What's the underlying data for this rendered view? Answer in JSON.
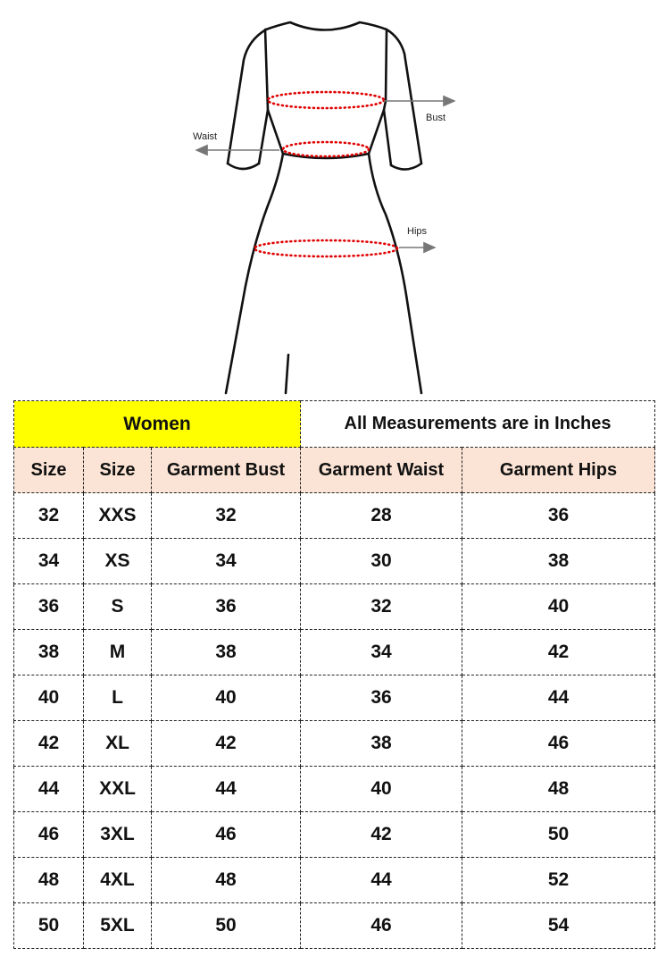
{
  "figure": {
    "labels": {
      "bust": "Bust",
      "waist": "Waist",
      "hips": "Hips"
    },
    "colors": {
      "outline": "#111111",
      "measure_dots": "#e00000",
      "arrow": "#777777"
    }
  },
  "table": {
    "group_label": "Women",
    "note": "All Measurements are in Inches",
    "colors": {
      "group_bg": "#ffff00",
      "header_bg": "#fbe4d5"
    },
    "headers": [
      "Size",
      "Size",
      "Garment Bust",
      "Garment Waist",
      "Garment Hips"
    ],
    "rows": [
      [
        "32",
        "XXS",
        "32",
        "28",
        "36"
      ],
      [
        "34",
        "XS",
        "34",
        "30",
        "38"
      ],
      [
        "36",
        "S",
        "36",
        "32",
        "40"
      ],
      [
        "38",
        "M",
        "38",
        "34",
        "42"
      ],
      [
        "40",
        "L",
        "40",
        "36",
        "44"
      ],
      [
        "42",
        "XL",
        "42",
        "38",
        "46"
      ],
      [
        "44",
        "XXL",
        "44",
        "40",
        "48"
      ],
      [
        "46",
        "3XL",
        "46",
        "42",
        "50"
      ],
      [
        "48",
        "4XL",
        "48",
        "44",
        "52"
      ],
      [
        "50",
        "5XL",
        "50",
        "46",
        "54"
      ]
    ]
  }
}
